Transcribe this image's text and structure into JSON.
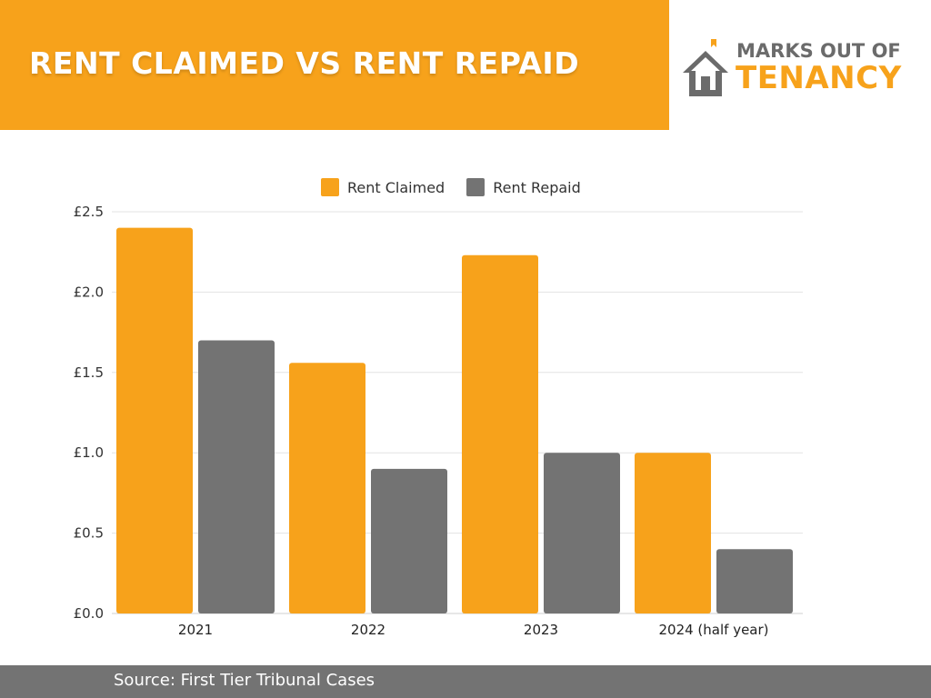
{
  "header": {
    "title": "RENT CLAIMED VS RENT REPAID",
    "accent_color": "#f7a21b"
  },
  "logo": {
    "icon": "house-icon",
    "line1": "MARKS OUT OF",
    "line2": "TENANCY",
    "primary_color": "#6b6b6b",
    "accent_color": "#f7a21b"
  },
  "chart_data": {
    "type": "bar",
    "title": "",
    "xlabel": "",
    "ylabel": "",
    "categories": [
      "2021",
      "2022",
      "2023",
      "2024 (half year)"
    ],
    "series": [
      {
        "name": "Rent Claimed",
        "color": "#f7a21b",
        "values": [
          2.4,
          1.56,
          2.23,
          1.0
        ]
      },
      {
        "name": "Rent Repaid",
        "color": "#737373",
        "values": [
          1.7,
          0.9,
          1.0,
          0.4
        ]
      }
    ],
    "ylim": [
      0,
      2.5
    ],
    "yticks": [
      "£0.0",
      "£0.5",
      "£1.0",
      "£1.5",
      "£2.0",
      "£2.5"
    ],
    "grid": true,
    "legend_position": "top-center"
  },
  "footer": {
    "source": "Source: First Tier Tribunal Cases"
  }
}
